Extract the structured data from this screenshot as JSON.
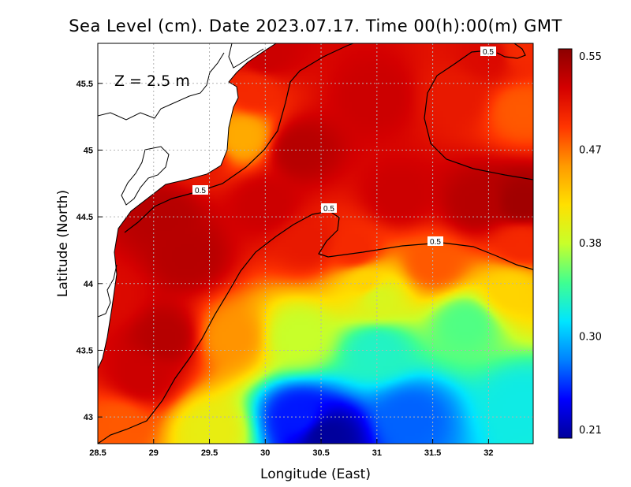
{
  "chart_data": {
    "type": "heatmap",
    "title": "Sea Level (cm). Date 2023.07.17. Time 00(h):00(m) GMT",
    "xlabel": "Longitude (East)",
    "ylabel": "Latitude (North)",
    "annotation": "Z = 2.5 m",
    "xlim": [
      28.5,
      32.4
    ],
    "ylim": [
      42.8,
      45.8
    ],
    "x_ticks": [
      "28.5",
      "29",
      "29.5",
      "30",
      "30.5",
      "31",
      "31.5",
      "32"
    ],
    "y_ticks": [
      "43",
      "43.5",
      "44",
      "44.5",
      "45",
      "45.5"
    ],
    "grid": true,
    "colorbar": {
      "min": 0.21,
      "max": 0.55,
      "ticks": [
        "0.55",
        "0.47",
        "0.38",
        "0.30",
        "0.21"
      ],
      "palette": [
        "#00009c",
        "#0000ff",
        "#0080ff",
        "#00e5ff",
        "#40ff90",
        "#c8ff2a",
        "#ffe000",
        "#ff9a00",
        "#ff3500",
        "#d40000",
        "#8c0000"
      ]
    },
    "contour_level": 0.5,
    "contour_labels": [
      "0.5",
      "0.5",
      "0.5",
      "0.5"
    ],
    "field_points": [
      {
        "lon": 30.55,
        "lat": 42.85,
        "value": 0.21
      },
      {
        "lon": 30.3,
        "lat": 43.0,
        "value": 0.25
      },
      {
        "lon": 31.3,
        "lat": 43.0,
        "value": 0.27
      },
      {
        "lon": 32.3,
        "lat": 43.1,
        "value": 0.32
      },
      {
        "lon": 29.5,
        "lat": 42.9,
        "value": 0.4
      },
      {
        "lon": 31.0,
        "lat": 43.5,
        "value": 0.33
      },
      {
        "lon": 30.3,
        "lat": 43.6,
        "value": 0.38
      },
      {
        "lon": 31.8,
        "lat": 43.7,
        "value": 0.35
      },
      {
        "lon": 29.7,
        "lat": 43.6,
        "value": 0.45
      },
      {
        "lon": 31.0,
        "lat": 43.9,
        "value": 0.39
      },
      {
        "lon": 32.2,
        "lat": 43.95,
        "value": 0.42
      },
      {
        "lon": 29.1,
        "lat": 43.6,
        "value": 0.53
      },
      {
        "lon": 28.9,
        "lat": 43.3,
        "value": 0.52
      },
      {
        "lon": 28.7,
        "lat": 42.95,
        "value": 0.47
      },
      {
        "lon": 29.3,
        "lat": 44.2,
        "value": 0.53
      },
      {
        "lon": 29.1,
        "lat": 44.5,
        "value": 0.53
      },
      {
        "lon": 30.0,
        "lat": 44.6,
        "value": 0.52
      },
      {
        "lon": 30.4,
        "lat": 44.3,
        "value": 0.5
      },
      {
        "lon": 30.8,
        "lat": 44.25,
        "value": 0.49
      },
      {
        "lon": 31.5,
        "lat": 44.15,
        "value": 0.47
      },
      {
        "lon": 32.3,
        "lat": 44.3,
        "value": 0.49
      },
      {
        "lon": 30.3,
        "lat": 45.0,
        "value": 0.53
      },
      {
        "lon": 29.9,
        "lat": 45.45,
        "value": 0.49
      },
      {
        "lon": 29.8,
        "lat": 45.1,
        "value": 0.44
      },
      {
        "lon": 30.0,
        "lat": 45.7,
        "value": 0.52
      },
      {
        "lon": 31.0,
        "lat": 45.4,
        "value": 0.52
      },
      {
        "lon": 31.7,
        "lat": 45.4,
        "value": 0.5
      },
      {
        "lon": 32.3,
        "lat": 45.3,
        "value": 0.47
      },
      {
        "lon": 32.3,
        "lat": 44.6,
        "value": 0.54
      },
      {
        "lon": 31.9,
        "lat": 44.6,
        "value": 0.53
      },
      {
        "lon": 31.2,
        "lat": 44.65,
        "value": 0.52
      },
      {
        "lon": 32.0,
        "lat": 45.7,
        "value": 0.51
      },
      {
        "lon": 32.3,
        "lat": 45.75,
        "value": 0.49
      },
      {
        "lon": 28.6,
        "lat": 43.9,
        "value": 0.51
      },
      {
        "lon": 29.4,
        "lat": 44.95,
        "value": 0.5
      },
      {
        "lon": 30.9,
        "lat": 44.0,
        "value": 0.42
      }
    ]
  }
}
